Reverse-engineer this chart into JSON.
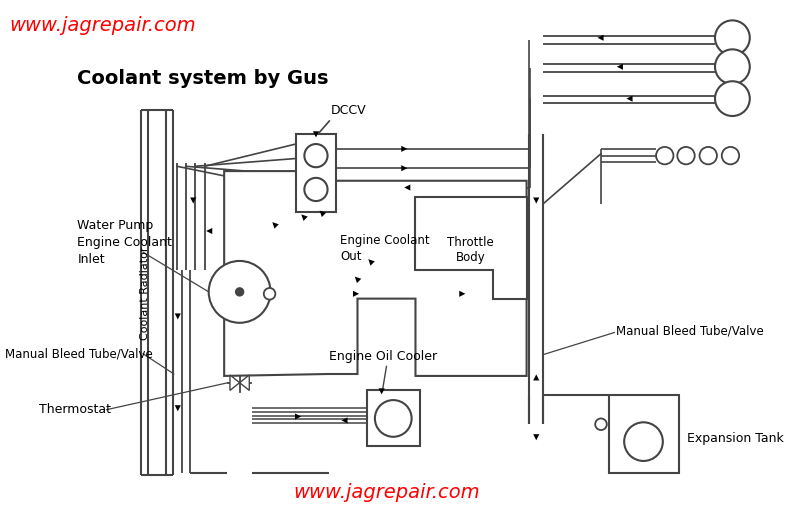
{
  "title": "Coolant system by Gus",
  "website": "www.jagrepair.com",
  "dccv_label": "DCCV",
  "bg_color": "#ffffff",
  "lc": "#444444",
  "tc": "#000000",
  "rc": "#ff0000",
  "label_water_pump": "Water Pump\nEngine Coolant\nInlet",
  "label_coolant_radiator": "Coolant Radiator",
  "label_manual_bleed_left": "Manual Bleed Tube/Valve",
  "label_manual_bleed_right": "Manual Bleed Tube/Valve",
  "label_engine_coolant_out": "Engine Coolant\nOut",
  "label_throttle_body": "Throttle\nBody",
  "label_engine_oil_cooler": "Engine Oil Cooler",
  "label_thermostat": "Thermostat",
  "label_expansion_tank": "Expansion Tank"
}
